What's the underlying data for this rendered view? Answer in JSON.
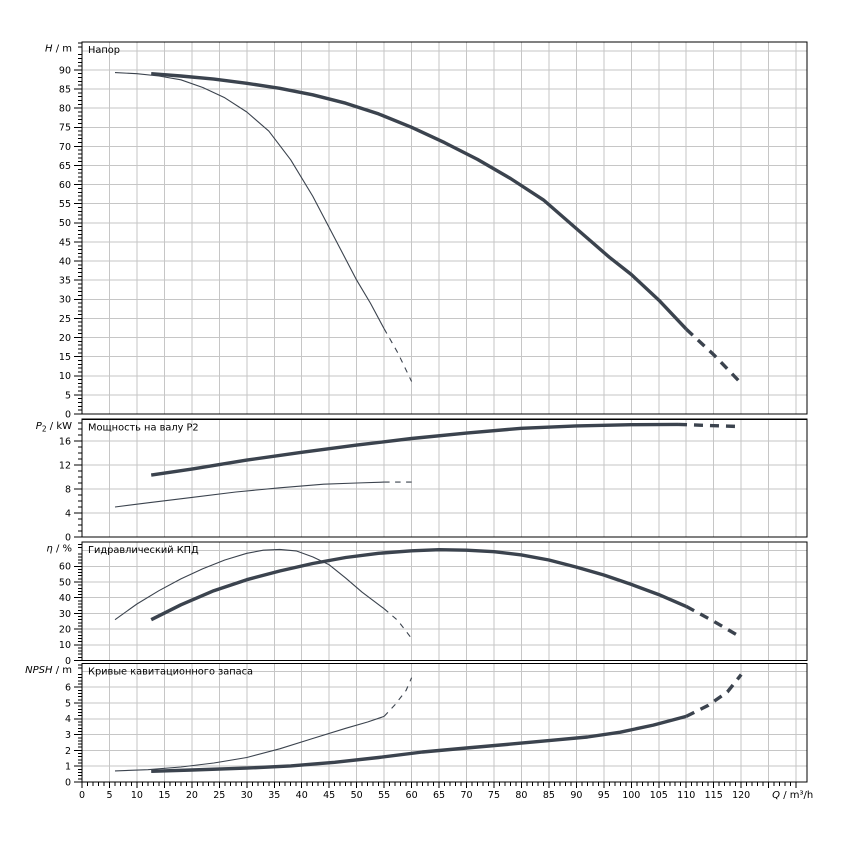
{
  "chart_data": {
    "type": "line",
    "description": "Pump performance curves, four stacked panels sharing flow axis",
    "colors": {
      "curve": "#3b434e",
      "grid": "#c6c6c6",
      "axis": "#000000",
      "text": "#000000",
      "background": "#ffffff"
    },
    "x_axis": {
      "unit": {
        "pre_italic": "Q",
        "sub": "",
        "post": " / m³/h"
      },
      "min": 0,
      "max": 132,
      "grid_step": 5,
      "label_step": 5,
      "label_max": 120,
      "minor_tick_step": 1,
      "minor_tick_max": 130
    },
    "panels": [
      {
        "id": "head",
        "title": "Напор",
        "unit": {
          "pre_italic": "H",
          "sub": "",
          "post": " / m"
        },
        "axis_top_value": 97.3,
        "label_step": 5,
        "label_max": 90,
        "minor_step": 1,
        "series": [
          {
            "name": "head-main",
            "weight": "thick",
            "solid": [
              [
                12.6,
                89
              ],
              [
                18,
                88.4
              ],
              [
                24,
                87.6
              ],
              [
                30,
                86.5
              ],
              [
                36,
                85.2
              ],
              [
                42,
                83.5
              ],
              [
                48,
                81.3
              ],
              [
                54,
                78.5
              ],
              [
                60,
                75
              ],
              [
                66,
                71
              ],
              [
                72,
                66.6
              ],
              [
                78,
                61.6
              ],
              [
                84,
                56
              ],
              [
                90,
                48.5
              ],
              [
                96,
                41
              ],
              [
                100,
                36.5
              ],
              [
                105,
                29.8
              ],
              [
                110,
                22.2
              ]
            ],
            "dashed": [
              [
                110,
                22.2
              ],
              [
                115,
                15.5
              ],
              [
                119.5,
                8.8
              ]
            ]
          },
          {
            "name": "head-secondary",
            "weight": "thin",
            "solid": [
              [
                6,
                89.3
              ],
              [
                10,
                89
              ],
              [
                14,
                88.4
              ],
              [
                18,
                87.4
              ],
              [
                22,
                85.4
              ],
              [
                26,
                82.7
              ],
              [
                30,
                79
              ],
              [
                34,
                74
              ],
              [
                38,
                66.5
              ],
              [
                42,
                57
              ],
              [
                46,
                46
              ],
              [
                50,
                35
              ],
              [
                52.5,
                29
              ],
              [
                55,
                22.3
              ]
            ],
            "dashed": [
              [
                55,
                22.3
              ],
              [
                57.5,
                16
              ],
              [
                60,
                8.5
              ]
            ]
          }
        ]
      },
      {
        "id": "power",
        "title": "Мощность на валу P2",
        "unit": {
          "pre_italic": "P",
          "sub": "2",
          "post": " / kW"
        },
        "axis_top_value": 19.6,
        "label_step": 4,
        "label_max": 16,
        "minor_step": 1,
        "series": [
          {
            "name": "power-main",
            "weight": "thick",
            "solid": [
              [
                12.6,
                10.3
              ],
              [
                20,
                11.3
              ],
              [
                30,
                12.8
              ],
              [
                40,
                14.1
              ],
              [
                50,
                15.3
              ],
              [
                60,
                16.4
              ],
              [
                70,
                17.3
              ],
              [
                80,
                18.1
              ],
              [
                90,
                18.5
              ],
              [
                100,
                18.7
              ],
              [
                108.5,
                18.75
              ]
            ],
            "dashed": [
              [
                108.5,
                18.75
              ],
              [
                119.5,
                18.4
              ]
            ]
          },
          {
            "name": "power-secondary",
            "weight": "thin",
            "solid": [
              [
                6,
                5
              ],
              [
                12,
                5.7
              ],
              [
                20,
                6.6
              ],
              [
                28,
                7.5
              ],
              [
                36,
                8.2
              ],
              [
                44,
                8.8
              ],
              [
                50,
                9
              ],
              [
                55,
                9.15
              ]
            ],
            "dashed": [
              [
                55,
                9.15
              ],
              [
                60,
                9.15
              ]
            ]
          }
        ]
      },
      {
        "id": "efficiency",
        "title": "Гидравлический КПД",
        "unit": {
          "pre_italic": "η",
          "sub": "",
          "post": " / %"
        },
        "axis_top_value": 75.5,
        "label_step": 10,
        "label_max": 60,
        "minor_step": 2,
        "series": [
          {
            "name": "efficiency-main",
            "weight": "thick",
            "solid": [
              [
                12.6,
                26
              ],
              [
                18,
                35.5
              ],
              [
                24,
                44.5
              ],
              [
                30,
                51.5
              ],
              [
                36,
                57
              ],
              [
                42,
                61.8
              ],
              [
                48,
                65.6
              ],
              [
                54,
                68.3
              ],
              [
                60,
                69.9
              ],
              [
                65,
                70.6
              ],
              [
                70,
                70.3
              ],
              [
                75,
                69.3
              ],
              [
                80,
                67.3
              ],
              [
                85,
                64
              ],
              [
                90,
                59.5
              ],
              [
                95,
                54.5
              ],
              [
                100,
                48.5
              ],
              [
                105,
                42
              ],
              [
                110,
                34.5
              ]
            ],
            "dashed": [
              [
                110,
                34.5
              ],
              [
                115,
                25
              ],
              [
                120,
                14.7
              ]
            ]
          },
          {
            "name": "efficiency-secondary",
            "weight": "thin",
            "solid": [
              [
                6,
                26
              ],
              [
                10,
                36
              ],
              [
                14,
                44.5
              ],
              [
                18,
                52
              ],
              [
                22,
                58.5
              ],
              [
                26,
                64
              ],
              [
                30,
                68.3
              ],
              [
                33,
                70.3
              ],
              [
                36,
                70.8
              ],
              [
                39,
                69.8
              ],
              [
                42,
                66
              ],
              [
                45,
                61
              ],
              [
                48,
                52.5
              ],
              [
                51,
                43.5
              ],
              [
                55,
                33
              ]
            ],
            "dashed": [
              [
                55,
                33
              ],
              [
                57.5,
                25.5
              ],
              [
                60,
                14
              ]
            ]
          }
        ]
      },
      {
        "id": "npsh",
        "title": "Кривые кавитационного запаса",
        "unit": {
          "pre_italic": "NPSH",
          "sub": "",
          "post": " / m"
        },
        "axis_top_value": 7.5,
        "label_step": 1,
        "label_max": 6,
        "minor_step": 0.2,
        "series": [
          {
            "name": "npsh-main",
            "weight": "thick",
            "solid": [
              [
                12.6,
                0.68
              ],
              [
                20,
                0.76
              ],
              [
                30,
                0.88
              ],
              [
                38,
                1.02
              ],
              [
                46,
                1.25
              ],
              [
                54,
                1.55
              ],
              [
                62,
                1.9
              ],
              [
                70,
                2.15
              ],
              [
                78,
                2.4
              ],
              [
                86,
                2.65
              ],
              [
                92,
                2.85
              ],
              [
                98,
                3.15
              ],
              [
                104,
                3.6
              ],
              [
                110,
                4.15
              ]
            ],
            "dashed": [
              [
                110,
                4.15
              ],
              [
                114,
                4.85
              ],
              [
                117.5,
                5.7
              ],
              [
                120,
                6.8
              ]
            ]
          },
          {
            "name": "npsh-secondary",
            "weight": "thin",
            "solid": [
              [
                6,
                0.7
              ],
              [
                12,
                0.78
              ],
              [
                18,
                0.95
              ],
              [
                24,
                1.2
              ],
              [
                30,
                1.55
              ],
              [
                36,
                2.1
              ],
              [
                42,
                2.75
              ],
              [
                48,
                3.4
              ],
              [
                52,
                3.8
              ],
              [
                55,
                4.15
              ]
            ],
            "dashed": [
              [
                55,
                4.15
              ],
              [
                57,
                4.9
              ],
              [
                59,
                5.8
              ],
              [
                60,
                6.6
              ]
            ]
          }
        ]
      }
    ]
  }
}
